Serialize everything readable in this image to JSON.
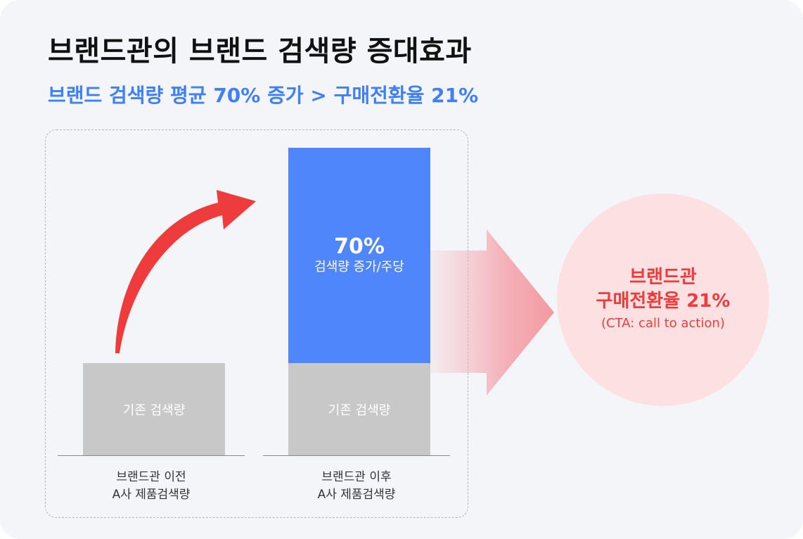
{
  "title": "브랜드관의 브랜드 검색량 증대효과",
  "subtitle": "브랜드 검색량 평균 70% 증가 > 구매전환율 21%",
  "before": {
    "bar_label": "기존 검색량",
    "caption_line1": "브랜드관 이전",
    "caption_line2": "A사 제품검색량"
  },
  "after": {
    "base_label": "기존 검색량",
    "increase_value": "70%",
    "increase_label": "검색량 증가/주당",
    "caption_line1": "브랜드관 이후",
    "caption_line2": "A사 제품검색량"
  },
  "result": {
    "line1": "브랜드관",
    "line2": "구매전환율 21%",
    "line3": "(CTA: call to action)"
  },
  "colors": {
    "accent_blue": "#4f86fb",
    "accent_red": "#ee3b3b",
    "bar_gray": "#c8c8c8",
    "circle_pink": "#fde0e1"
  }
}
